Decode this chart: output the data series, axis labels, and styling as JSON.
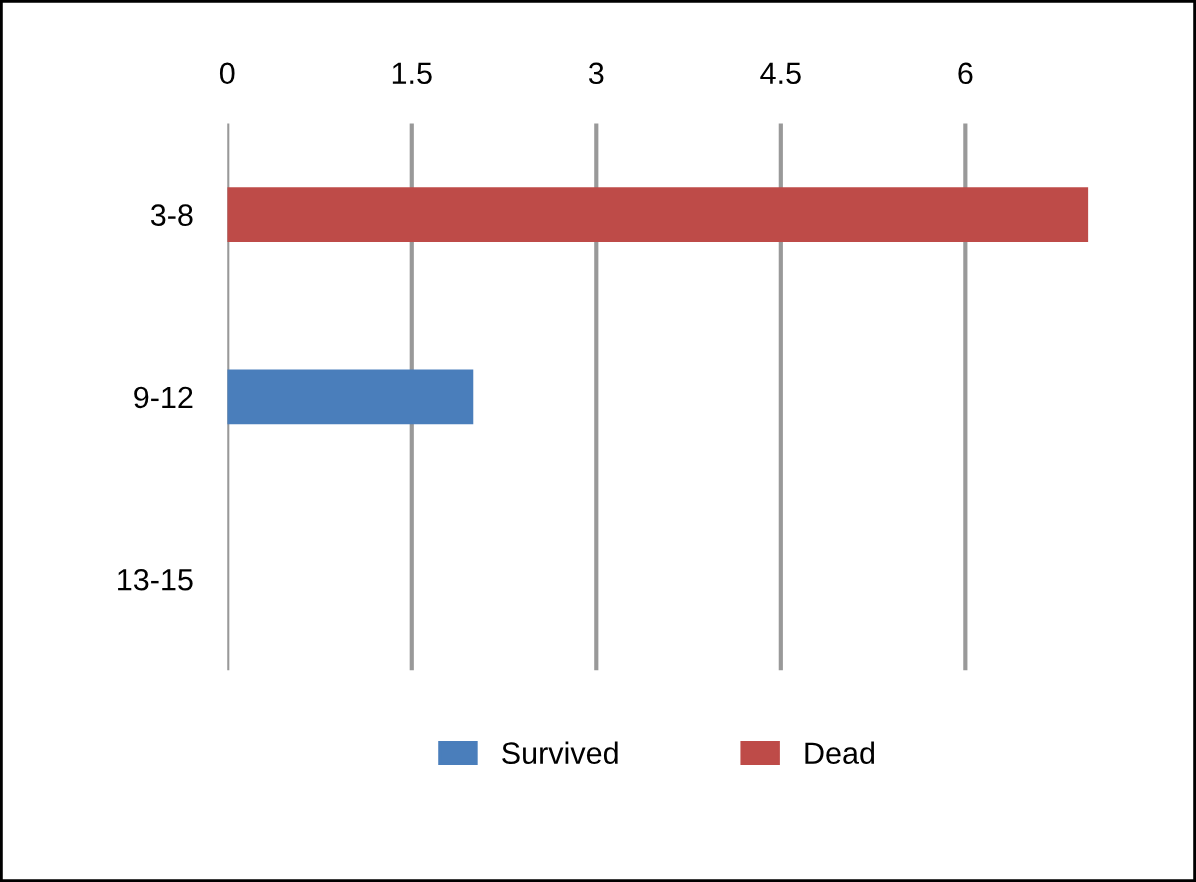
{
  "chart_data": {
    "type": "bar",
    "orientation": "horizontal",
    "categories": [
      "3-8",
      "9-12",
      "13-15"
    ],
    "series": [
      {
        "name": "Survived",
        "color": "#4a7ebb",
        "values": [
          null,
          2,
          null
        ]
      },
      {
        "name": "Dead",
        "color": "#be4b48",
        "values": [
          7,
          null,
          null
        ]
      }
    ],
    "xlim": [
      0,
      7
    ],
    "xticks": [
      0,
      1.5,
      3,
      4.5,
      6
    ],
    "grid": "x",
    "legend": "bottom"
  }
}
